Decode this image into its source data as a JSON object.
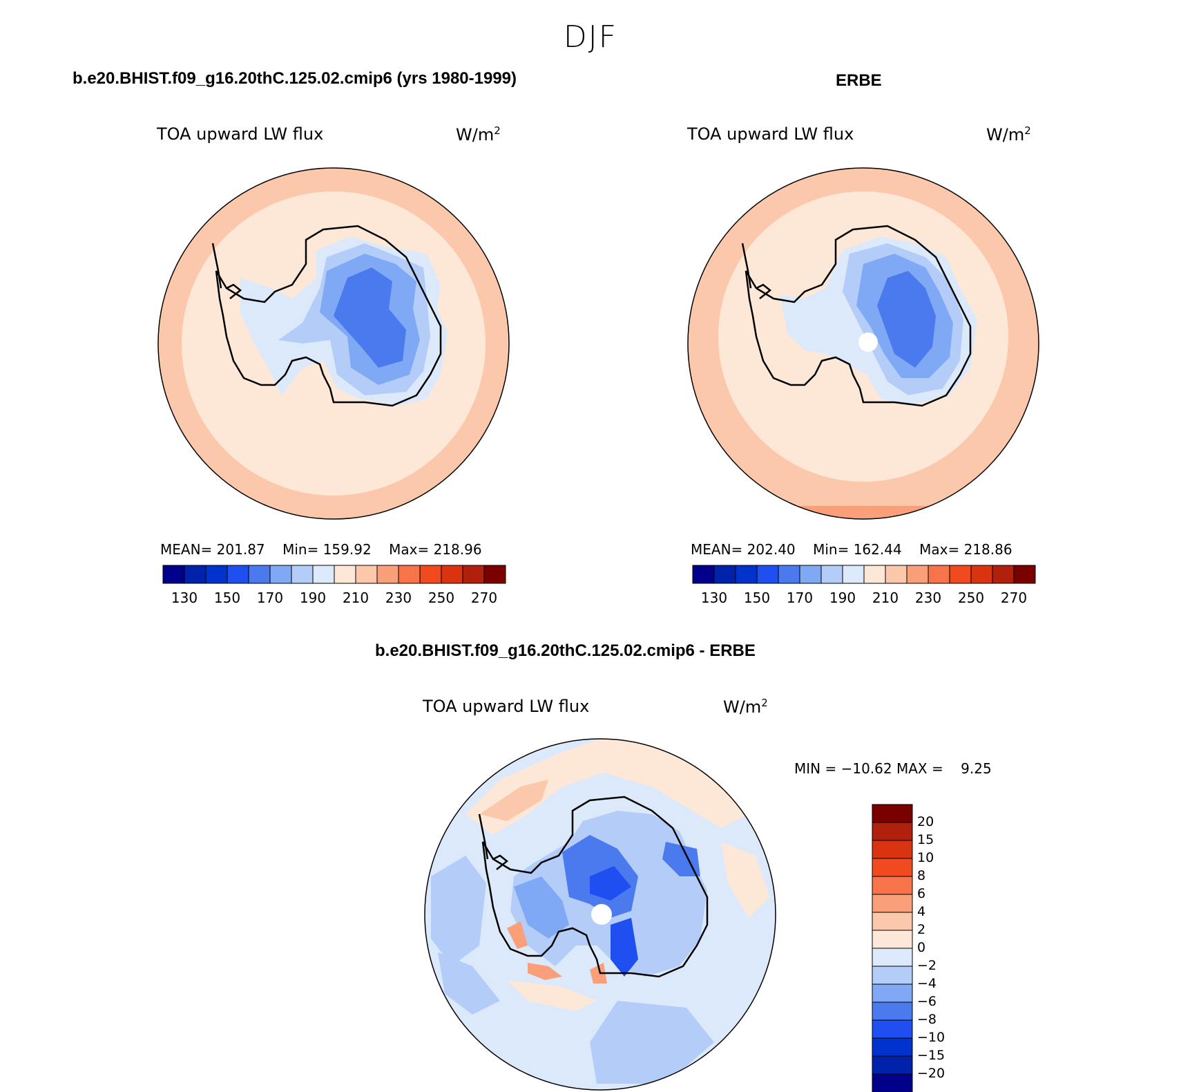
{
  "title": "DJF",
  "panels": {
    "model": {
      "title": "b.e20.BHIST.f09_g16.20thC.125.02.cmip6 (yrs 1980-1999)",
      "variable": "TOA upward LW flux",
      "units": "W/m",
      "units_sup": "2",
      "stats": {
        "mean_label": "MEAN=",
        "mean": "201.87",
        "min_label": "Min=",
        "min": "159.92",
        "max_label": "Max=",
        "max": "218.96"
      }
    },
    "obs": {
      "title": "ERBE",
      "variable": "TOA upward LW flux",
      "units": "W/m",
      "units_sup": "2",
      "stats": {
        "mean_label": "MEAN=",
        "mean": "202.40",
        "min_label": "Min=",
        "min": "162.44",
        "max_label": "Max=",
        "max": "218.86"
      }
    },
    "diff": {
      "title": "b.e20.BHIST.f09_g16.20thC.125.02.cmip6 - ERBE",
      "variable": "TOA upward LW flux",
      "units": "W/m",
      "units_sup": "2",
      "minmax": "MIN = −10.62 MAX =    9.25"
    }
  },
  "colorbar_abs": {
    "colors": [
      "#00008b",
      "#0022aa",
      "#0033cc",
      "#1f4ff0",
      "#4a7aee",
      "#7fa8f5",
      "#b3cdf8",
      "#dce9fb",
      "#fde8d8",
      "#fcc8ac",
      "#f9a07a",
      "#f7744a",
      "#f14a1e",
      "#d9330f",
      "#b0200c",
      "#7a0000"
    ],
    "labels": [
      "130",
      "150",
      "170",
      "190",
      "210",
      "230",
      "250",
      "270"
    ]
  },
  "colorbar_diff": {
    "colors": [
      "#7a0000",
      "#b0200c",
      "#d9330f",
      "#f14a1e",
      "#f7744a",
      "#f9a07a",
      "#fcc8ac",
      "#fde8d8",
      "#dce9fb",
      "#b3cdf8",
      "#7fa8f5",
      "#4a7aee",
      "#1f4ff0",
      "#0033cc",
      "#0022aa",
      "#00008b"
    ],
    "labels": [
      "20",
      "15",
      "10",
      "8",
      "6",
      "4",
      "2",
      "0",
      "−2",
      "−4",
      "−6",
      "−8",
      "−10",
      "−15",
      "−20"
    ]
  },
  "map_colors": {
    "ocean_outer": "#fcc8ac",
    "ocean_inner": "#fde8d8",
    "ice_edge": "#dce9fb",
    "ice_1": "#b3cdf8",
    "ice_2": "#7fa8f5",
    "ice_3": "#4a7aee",
    "diff_bg": "#dce9fb",
    "diff_neg": "#b3cdf8",
    "diff_neg2": "#7fa8f5",
    "diff_neg3": "#4a7aee",
    "diff_neg4": "#1f4ff0",
    "diff_pos": "#fde8d8",
    "diff_pos2": "#fcc8ac",
    "diff_pos3": "#f9a07a",
    "missing": "#ffffff"
  }
}
